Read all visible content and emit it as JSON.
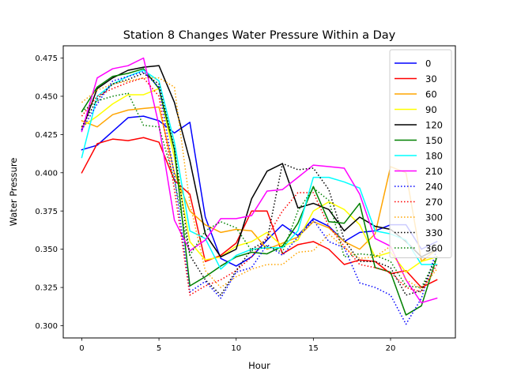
{
  "chart_data": {
    "type": "line",
    "title": "Station 8 Changes Water Pressure Within a Day",
    "xlabel": "Hour",
    "ylabel": "Water Pressure",
    "xlim": [
      -1.2,
      24.2
    ],
    "ylim": [
      0.292,
      0.483
    ],
    "xticks": [
      0,
      5,
      10,
      15,
      20
    ],
    "xtick_labels": [
      "0",
      "5",
      "10",
      "15",
      "20"
    ],
    "yticks": [
      0.3,
      0.325,
      0.35,
      0.375,
      0.4,
      0.425,
      0.45,
      0.475
    ],
    "ytick_labels": [
      "0.300",
      "0.325",
      "0.350",
      "0.375",
      "0.400",
      "0.425",
      "0.450",
      "0.475"
    ],
    "grid": false,
    "legend_position": "top-right",
    "x": [
      0,
      1,
      2,
      3,
      4,
      5,
      6,
      7,
      8,
      9,
      10,
      11,
      12,
      13,
      14,
      15,
      16,
      17,
      18,
      19,
      20,
      21,
      22,
      23
    ],
    "series": [
      {
        "name": "0",
        "color": "#0000ff",
        "style": "solid",
        "values": [
          0.415,
          0.418,
          0.427,
          0.436,
          0.437,
          0.434,
          0.426,
          0.433,
          0.371,
          0.344,
          0.339,
          0.345,
          0.356,
          0.366,
          0.359,
          0.37,
          0.365,
          0.355,
          0.361,
          0.362,
          0.366,
          0.366,
          0.35,
          0.355
        ]
      },
      {
        "name": "30",
        "color": "#ff0000",
        "style": "solid",
        "values": [
          0.4,
          0.419,
          0.422,
          0.421,
          0.423,
          0.42,
          0.395,
          0.386,
          0.342,
          0.346,
          0.354,
          0.375,
          0.375,
          0.347,
          0.353,
          0.355,
          0.35,
          0.34,
          0.343,
          0.342,
          0.334,
          0.336,
          0.325,
          0.33
        ]
      },
      {
        "name": "60",
        "color": "#ffa500",
        "style": "solid",
        "values": [
          0.434,
          0.43,
          0.438,
          0.441,
          0.442,
          0.443,
          0.4,
          0.375,
          0.366,
          0.361,
          0.363,
          0.362,
          0.35,
          0.354,
          0.358,
          0.368,
          0.364,
          0.355,
          0.35,
          0.36,
          0.404,
          0.4,
          0.342,
          0.35
        ]
      },
      {
        "name": "90",
        "color": "#ffff00",
        "style": "solid",
        "values": [
          0.43,
          0.437,
          0.445,
          0.451,
          0.451,
          0.455,
          0.41,
          0.355,
          0.343,
          0.345,
          0.352,
          0.355,
          0.361,
          0.352,
          0.356,
          0.375,
          0.381,
          0.376,
          0.366,
          0.345,
          0.348,
          0.335,
          0.342,
          0.345
        ]
      },
      {
        "name": "120",
        "color": "#000000",
        "style": "solid",
        "values": [
          0.428,
          0.455,
          0.462,
          0.467,
          0.469,
          0.47,
          0.446,
          0.408,
          0.36,
          0.345,
          0.35,
          0.383,
          0.401,
          0.406,
          0.377,
          0.38,
          0.376,
          0.362,
          0.371,
          0.365,
          0.363,
          0.355,
          0.345,
          0.35
        ]
      },
      {
        "name": "150",
        "color": "#008000",
        "style": "solid",
        "values": [
          0.44,
          0.456,
          0.463,
          0.465,
          0.468,
          0.455,
          0.415,
          0.326,
          0.332,
          0.339,
          0.345,
          0.348,
          0.347,
          0.352,
          0.367,
          0.391,
          0.368,
          0.367,
          0.38,
          0.338,
          0.335,
          0.307,
          0.313,
          0.345
        ]
      },
      {
        "name": "180",
        "color": "#00ffff",
        "style": "solid",
        "values": [
          0.41,
          0.45,
          0.458,
          0.463,
          0.467,
          0.46,
          0.42,
          0.362,
          0.357,
          0.337,
          0.346,
          0.35,
          0.351,
          0.351,
          0.362,
          0.397,
          0.397,
          0.394,
          0.39,
          0.362,
          0.36,
          0.356,
          0.34,
          0.34
        ]
      },
      {
        "name": "210",
        "color": "#ff00ff",
        "style": "solid",
        "values": [
          0.427,
          0.462,
          0.468,
          0.47,
          0.475,
          0.431,
          0.369,
          0.349,
          0.356,
          0.37,
          0.37,
          0.372,
          0.388,
          0.389,
          0.397,
          0.405,
          0.404,
          0.403,
          0.386,
          0.357,
          0.352,
          0.33,
          0.315,
          0.318
        ]
      },
      {
        "name": "240",
        "color": "#0000ff",
        "style": "dotted",
        "values": [
          0.428,
          0.445,
          0.46,
          0.463,
          0.466,
          0.456,
          0.398,
          0.322,
          0.329,
          0.318,
          0.335,
          0.338,
          0.353,
          0.346,
          0.358,
          0.369,
          0.355,
          0.351,
          0.328,
          0.325,
          0.32,
          0.301,
          0.318,
          0.35
        ]
      },
      {
        "name": "270",
        "color": "#ff0000",
        "style": "dotted",
        "values": [
          0.437,
          0.45,
          0.455,
          0.459,
          0.462,
          0.45,
          0.389,
          0.32,
          0.326,
          0.33,
          0.336,
          0.345,
          0.358,
          0.375,
          0.387,
          0.387,
          0.365,
          0.352,
          0.34,
          0.338,
          0.335,
          0.325,
          0.322,
          0.34
        ]
      },
      {
        "name": "300",
        "color": "#ffa500",
        "style": "dotted",
        "values": [
          0.446,
          0.454,
          0.458,
          0.46,
          0.462,
          0.462,
          0.456,
          0.38,
          0.336,
          0.325,
          0.332,
          0.337,
          0.34,
          0.34,
          0.348,
          0.349,
          0.36,
          0.351,
          0.344,
          0.345,
          0.352,
          0.33,
          0.324,
          0.337
        ]
      },
      {
        "name": "330",
        "color": "#000000",
        "style": "dotted",
        "values": [
          0.43,
          0.448,
          0.458,
          0.461,
          0.465,
          0.458,
          0.416,
          0.346,
          0.33,
          0.32,
          0.336,
          0.35,
          0.356,
          0.406,
          0.402,
          0.403,
          0.389,
          0.356,
          0.342,
          0.342,
          0.338,
          0.32,
          0.323,
          0.345
        ]
      },
      {
        "name": "360",
        "color": "#008000",
        "style": "dotted",
        "values": [
          0.44,
          0.447,
          0.45,
          0.452,
          0.431,
          0.43,
          0.395,
          0.346,
          0.362,
          0.368,
          0.364,
          0.349,
          0.352,
          0.348,
          0.375,
          0.39,
          0.382,
          0.345,
          0.347,
          0.346,
          0.342,
          0.326,
          0.325,
          0.345
        ]
      }
    ]
  }
}
